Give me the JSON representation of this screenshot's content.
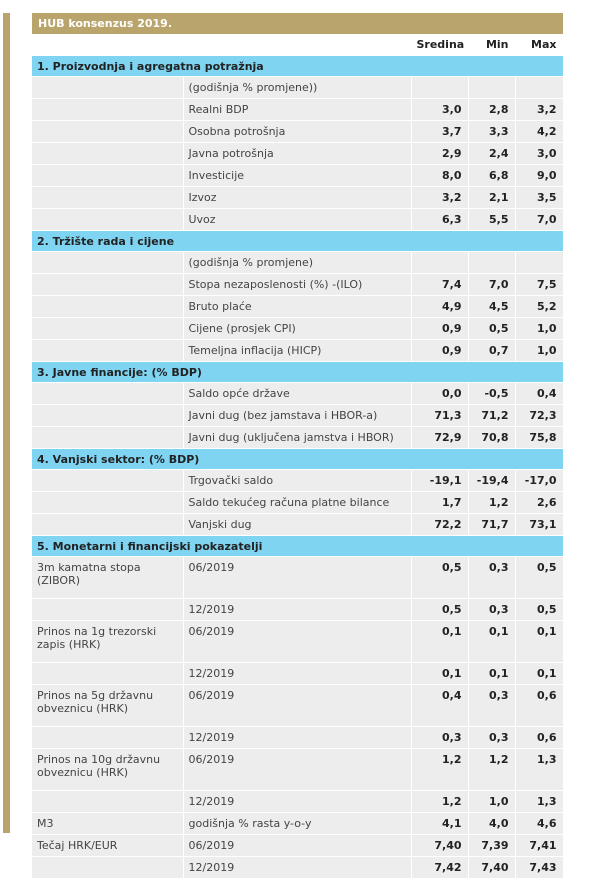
{
  "title": "HUB konsenzus 2019.",
  "columns": [
    "Sredina",
    "Min",
    "Max"
  ],
  "rows": [
    {
      "type": "section",
      "label": "1. Proizvodnja i agregatna potražnja"
    },
    {
      "type": "row",
      "a": "",
      "b": "(godišnja % promjene))",
      "s": "",
      "mn": "",
      "mx": ""
    },
    {
      "type": "row",
      "a": "",
      "b": "Realni BDP",
      "s": "3,0",
      "mn": "2,8",
      "mx": "3,2"
    },
    {
      "type": "row",
      "a": "",
      "b": "Osobna potrošnja",
      "s": "3,7",
      "mn": "3,3",
      "mx": "4,2"
    },
    {
      "type": "row",
      "a": "",
      "b": "Javna potrošnja",
      "s": "2,9",
      "mn": "2,4",
      "mx": "3,0"
    },
    {
      "type": "row",
      "a": "",
      "b": "Investicije",
      "s": "8,0",
      "mn": "6,8",
      "mx": "9,0"
    },
    {
      "type": "row",
      "a": "",
      "b": "Izvoz",
      "s": "3,2",
      "mn": "2,1",
      "mx": "3,5"
    },
    {
      "type": "row",
      "a": "",
      "b": "Uvoz",
      "s": "6,3",
      "mn": "5,5",
      "mx": "7,0"
    },
    {
      "type": "section",
      "label": "2. Tržište rada i cijene"
    },
    {
      "type": "row",
      "a": "",
      "b": "(godišnja % promjene)",
      "s": "",
      "mn": "",
      "mx": ""
    },
    {
      "type": "row",
      "a": "",
      "b": "Stopa nezaposlenosti (%) -(ILO)",
      "s": "7,4",
      "mn": "7,0",
      "mx": "7,5"
    },
    {
      "type": "row",
      "a": "",
      "b": "Bruto plaće",
      "s": "4,9",
      "mn": "4,5",
      "mx": "5,2"
    },
    {
      "type": "row",
      "a": "",
      "b": "Cijene (prosjek CPI)",
      "s": "0,9",
      "mn": "0,5",
      "mx": "1,0"
    },
    {
      "type": "row",
      "a": "",
      "b": "Temeljna inflacija (HICP)",
      "s": "0,9",
      "mn": "0,7",
      "mx": "1,0"
    },
    {
      "type": "section",
      "label": "3. Javne financije: (% BDP)"
    },
    {
      "type": "row",
      "a": "",
      "b": "Saldo opće države",
      "s": "0,0",
      "mn": "-0,5",
      "mx": "0,4"
    },
    {
      "type": "row",
      "a": "",
      "b": "Javni dug (bez jamstava i HBOR-a)",
      "s": "71,3",
      "mn": "71,2",
      "mx": "72,3"
    },
    {
      "type": "row",
      "a": "",
      "b": "Javni dug (uključena jamstva i HBOR)",
      "s": "72,9",
      "mn": "70,8",
      "mx": "75,8"
    },
    {
      "type": "section",
      "label": "4. Vanjski sektor: (% BDP)"
    },
    {
      "type": "row",
      "a": "",
      "b": "Trgovački saldo",
      "s": "-19,1",
      "mn": "-19,4",
      "mx": "-17,0"
    },
    {
      "type": "row",
      "a": "",
      "b": "Saldo tekućeg računa platne bilance",
      "s": "1,7",
      "mn": "1,2",
      "mx": "2,6"
    },
    {
      "type": "row",
      "a": "",
      "b": "Vanjski dug",
      "s": "72,2",
      "mn": "71,7",
      "mx": "73,1"
    },
    {
      "type": "section",
      "label": "5. Monetarni i financijski pokazatelji"
    },
    {
      "type": "row",
      "tall": true,
      "a": "3m kamatna stopa (ZIBOR)",
      "b": "06/2019",
      "s": "0,5",
      "mn": "0,3",
      "mx": "0,5"
    },
    {
      "type": "row",
      "a": "",
      "b": "12/2019",
      "s": "0,5",
      "mn": "0,3",
      "mx": "0,5"
    },
    {
      "type": "row",
      "tall": true,
      "a": "Prinos na 1g trezorski zapis (HRK)",
      "b": "06/2019",
      "s": "0,1",
      "mn": "0,1",
      "mx": "0,1"
    },
    {
      "type": "row",
      "a": "",
      "b": "12/2019",
      "s": "0,1",
      "mn": "0,1",
      "mx": "0,1"
    },
    {
      "type": "row",
      "tall": true,
      "a": "Prinos na 5g državnu obveznicu (HRK)",
      "b": "06/2019",
      "s": "0,4",
      "mn": "0,3",
      "mx": "0,6"
    },
    {
      "type": "row",
      "a": "",
      "b": "12/2019",
      "s": "0,3",
      "mn": "0,3",
      "mx": "0,6"
    },
    {
      "type": "row",
      "tall": true,
      "a": "Prinos na 10g državnu obveznicu (HRK)",
      "b": "06/2019",
      "s": "1,2",
      "mn": "1,2",
      "mx": "1,3"
    },
    {
      "type": "row",
      "a": "",
      "b": "12/2019",
      "s": "1,2",
      "mn": "1,0",
      "mx": "1,3"
    },
    {
      "type": "row",
      "a": "M3",
      "b": "godišnja % rasta y-o-y",
      "s": "4,1",
      "mn": "4,0",
      "mx": "4,6"
    },
    {
      "type": "row",
      "a": "Tečaj HRK/EUR",
      "b": "06/2019",
      "s": "7,40",
      "mn": "7,39",
      "mx": "7,41"
    },
    {
      "type": "row",
      "a": "",
      "b": "12/2019",
      "s": "7,42",
      "mn": "7,40",
      "mx": "7,43"
    }
  ]
}
